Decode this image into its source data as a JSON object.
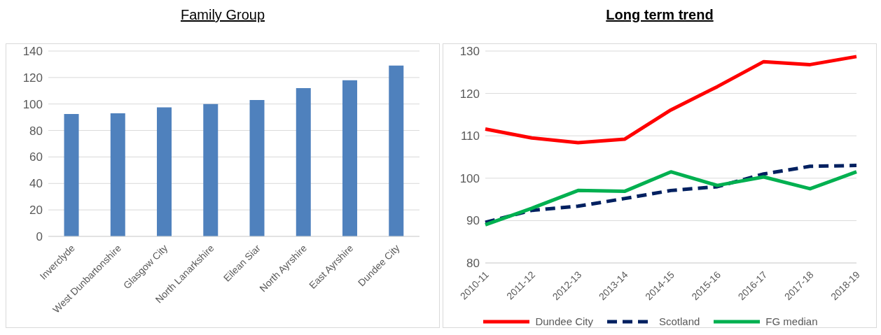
{
  "chart_data": [
    {
      "type": "bar",
      "title": "Family Group",
      "categories": [
        "Inverclyde",
        "West Dunbartonshire",
        "Glasgow City",
        "North Lanarkshire",
        "Eilean Siar",
        "North Ayrshire",
        "East Ayrshire",
        "Dundee City"
      ],
      "values": [
        92.5,
        93,
        97.5,
        100,
        103,
        112,
        118,
        129
      ],
      "colors": [
        "#4f81bd",
        "#4f81bd",
        "#4f81bd",
        "#4f81bd",
        "#4f81bd",
        "#4f81bd",
        "#4f81bd",
        "#4f81bd"
      ],
      "ylim": [
        0,
        140
      ],
      "yticks": [
        0,
        20,
        40,
        60,
        80,
        100,
        120,
        140
      ],
      "grid": "y",
      "legend": false
    },
    {
      "type": "line",
      "title": "Long term trend",
      "categories": [
        "2010-11",
        "2011-12",
        "2012-13",
        "2013-14",
        "2014-15",
        "2015-16",
        "2016-17",
        "2017-18",
        "2018-19"
      ],
      "series": [
        {
          "name": "Dundee City",
          "color": "#ff0000",
          "line_style": "solid",
          "values": [
            111.6,
            109.5,
            108.4,
            109.2,
            116.1,
            121.6,
            127.5,
            126.8,
            128.7
          ]
        },
        {
          "name": "Scotland",
          "color": "#002060",
          "line_style": "dashed",
          "values": [
            89.6,
            92.4,
            93.4,
            95.2,
            97.1,
            98,
            101,
            102.8,
            103
          ]
        },
        {
          "name": "FG median",
          "color": "#00b050",
          "line_style": "solid",
          "values": [
            89,
            92.9,
            97.1,
            96.9,
            101.5,
            98.3,
            100.3,
            97.5,
            101.5
          ]
        }
      ],
      "ylim": [
        80,
        130
      ],
      "yticks": [
        80,
        90,
        100,
        110,
        120,
        130
      ],
      "grid": "y",
      "legend": "bottom",
      "marker": "none"
    }
  ]
}
